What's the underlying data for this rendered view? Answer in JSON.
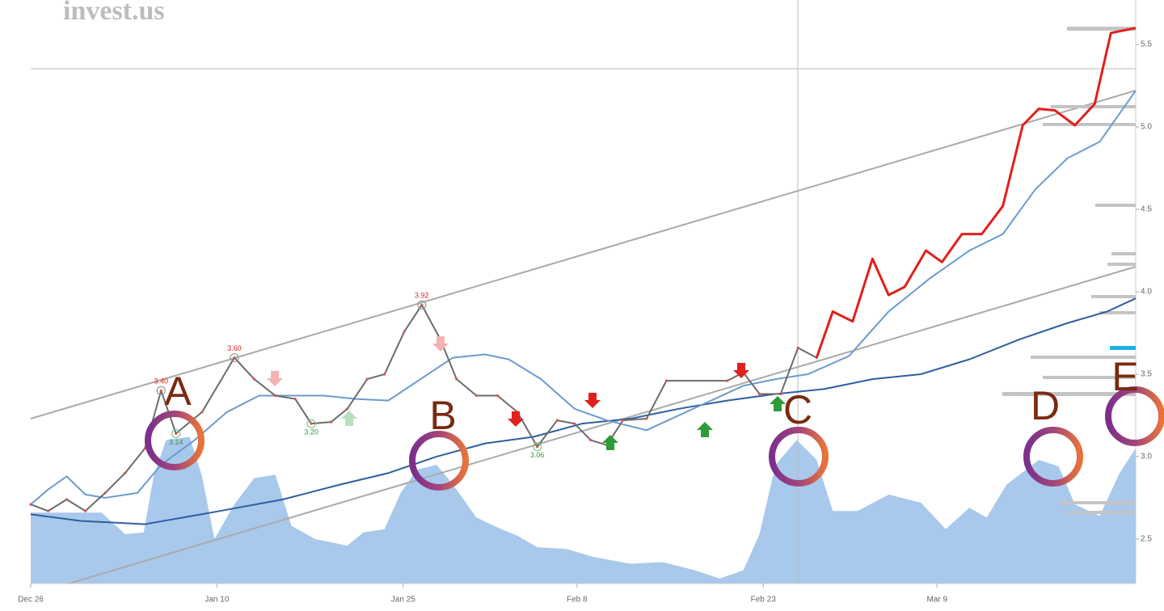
{
  "chart_data": {
    "type": "line",
    "logo": "invest.us",
    "xlim": [
      0,
      89
    ],
    "ylim": [
      2.23,
      5.77
    ],
    "xticks": [
      {
        "value": 0,
        "label": "Dec 26"
      },
      {
        "value": 15,
        "label": "Jan 10"
      },
      {
        "value": 30,
        "label": "Jan 25"
      },
      {
        "value": 44,
        "label": "Feb 8"
      },
      {
        "value": 59,
        "label": "Feb 23"
      },
      {
        "value": 73,
        "label": "Mar 9"
      }
    ],
    "yticks": [
      2.5,
      {
        "value": 3,
        "label": "3.0"
      },
      3.5,
      {
        "value": 4,
        "label": "4.0"
      },
      4.5,
      {
        "value": 5,
        "label": "5.0"
      },
      5.5
    ],
    "series": [
      {
        "type": "area",
        "color": "#a8c8ec",
        "x": [
          0,
          2.7,
          5.7,
          7.6,
          9.1,
          9.9,
          10.9,
          12.8,
          13.8,
          14.8,
          16.4,
          18.0,
          19.7,
          21.0,
          22.9,
          25.5,
          26.8,
          28.5,
          29.8,
          31.1,
          32.7,
          34.0,
          35.9,
          37.9,
          39.2,
          40.8,
          43.1,
          45.4,
          48.3,
          50.9,
          53.5,
          55.5,
          57.4,
          58.7,
          60.0,
          61.7,
          63.3,
          64.6,
          66.6,
          69.1,
          71.7,
          73.7,
          75.6,
          77.0,
          78.6,
          81.2,
          82.8,
          84.1,
          86.1,
          87.7,
          89.0
        ],
        "values": [
          2.66,
          2.66,
          2.66,
          2.53,
          2.54,
          2.88,
          3.1,
          3.12,
          2.88,
          2.5,
          2.71,
          2.87,
          2.89,
          2.58,
          2.5,
          2.46,
          2.54,
          2.56,
          2.78,
          2.92,
          2.95,
          2.83,
          2.63,
          2.56,
          2.52,
          2.45,
          2.44,
          2.39,
          2.35,
          2.36,
          2.31,
          2.26,
          2.31,
          2.53,
          2.95,
          3.1,
          2.98,
          2.67,
          2.67,
          2.77,
          2.72,
          2.56,
          2.69,
          2.63,
          2.83,
          2.98,
          2.94,
          2.71,
          2.64,
          2.9,
          3.05
        ]
      },
      {
        "color": "#2f5f9e",
        "x": [
          0,
          4.0,
          9.2,
          14.5,
          20.3,
          24.9,
          28.8,
          32.7,
          36.6,
          40.5,
          44.4,
          48.3,
          52.2,
          56.1,
          60.0,
          63.9,
          67.8,
          71.7,
          75.6,
          79.6,
          83.5,
          86.7,
          89.0
        ],
        "values": [
          2.65,
          2.61,
          2.59,
          2.66,
          2.74,
          2.83,
          2.9,
          3.0,
          3.08,
          3.12,
          3.2,
          3.23,
          3.29,
          3.34,
          3.38,
          3.41,
          3.47,
          3.5,
          3.59,
          3.71,
          3.81,
          3.88,
          3.96
        ]
      },
      {
        "color": "#6a9bcf",
        "x": [
          0,
          1.4,
          2.9,
          4.4,
          6.0,
          8.6,
          10.5,
          13.2,
          15.8,
          18.4,
          20.9,
          23.6,
          26.2,
          28.8,
          31.4,
          34.0,
          36.6,
          38.5,
          41.1,
          43.8,
          46.4,
          49.6,
          52.2,
          54.8,
          57.4,
          60.0,
          62.6,
          65.9,
          69.1,
          72.4,
          75.6,
          78.3,
          80.9,
          83.5,
          86.1,
          89.0
        ],
        "values": [
          2.71,
          2.8,
          2.88,
          2.77,
          2.75,
          2.78,
          2.95,
          3.1,
          3.27,
          3.37,
          3.37,
          3.37,
          3.35,
          3.34,
          3.47,
          3.6,
          3.62,
          3.59,
          3.47,
          3.29,
          3.22,
          3.16,
          3.25,
          3.34,
          3.43,
          3.47,
          3.5,
          3.61,
          3.88,
          4.08,
          4.25,
          4.35,
          4.62,
          4.81,
          4.91,
          5.22
        ]
      },
      {
        "color": "#6b6b6b",
        "dots": "#d9534f",
        "x": [
          0,
          1.4,
          2.9,
          4.4,
          6.0,
          7.6,
          9.2,
          10.5,
          11.7,
          13.8,
          16.4,
          18.0,
          19.7,
          21.3,
          22.6,
          24.2,
          25.5,
          27.1,
          28.5,
          30.1,
          31.5,
          33.0,
          34.3,
          35.9,
          37.6,
          39.2,
          40.8,
          42.4,
          43.8,
          45.1,
          46.4,
          47.7,
          49.6,
          51.2,
          56.1,
          57.4,
          58.7,
          60.4,
          61.8,
          63.3
        ],
        "values": [
          2.71,
          2.67,
          2.74,
          2.67,
          2.78,
          2.9,
          3.05,
          3.4,
          3.14,
          3.27,
          3.6,
          3.47,
          3.37,
          3.35,
          3.2,
          3.21,
          3.29,
          3.47,
          3.5,
          3.76,
          3.92,
          3.71,
          3.47,
          3.37,
          3.37,
          3.27,
          3.06,
          3.22,
          3.2,
          3.1,
          3.07,
          3.22,
          3.23,
          3.46,
          3.46,
          3.51,
          3.38,
          3.38,
          3.66,
          3.6
        ],
        "value_labels": [
          null,
          null,
          null,
          null,
          null,
          null,
          null,
          "3.40",
          "3.14",
          null,
          "3.60",
          null,
          null,
          null,
          "3.20",
          null,
          null,
          null,
          null,
          null,
          "3.92",
          null,
          null,
          null,
          null,
          null,
          "3.06",
          null,
          null,
          null,
          null,
          null,
          null,
          null,
          null,
          null,
          null,
          null,
          null,
          null
        ]
      },
      {
        "color": "#e0201b",
        "x": [
          63.3,
          64.6,
          66.2,
          67.8,
          69.1,
          70.4,
          72.1,
          73.4,
          75.0,
          76.6,
          78.3,
          79.9,
          81.2,
          82.5,
          84.1,
          85.7,
          87.0,
          89.0
        ],
        "values": [
          3.6,
          3.88,
          3.82,
          4.2,
          3.98,
          4.03,
          4.25,
          4.18,
          4.35,
          4.35,
          4.52,
          5.01,
          5.11,
          5.1,
          5.01,
          5.14,
          5.57,
          5.6
        ]
      }
    ],
    "annotations": [
      "A",
      "B",
      "C",
      "D",
      "E"
    ]
  }
}
